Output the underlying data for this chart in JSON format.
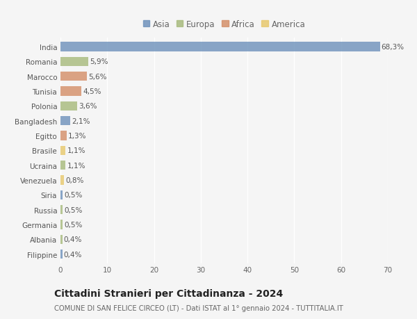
{
  "categories": [
    "India",
    "Romania",
    "Marocco",
    "Tunisia",
    "Polonia",
    "Bangladesh",
    "Egitto",
    "Brasile",
    "Ucraina",
    "Venezuela",
    "Siria",
    "Russia",
    "Germania",
    "Albania",
    "Filippine"
  ],
  "values": [
    68.3,
    5.9,
    5.6,
    4.5,
    3.6,
    2.1,
    1.3,
    1.1,
    1.1,
    0.8,
    0.5,
    0.5,
    0.5,
    0.4,
    0.4
  ],
  "continents": [
    "Asia",
    "Europa",
    "Africa",
    "Africa",
    "Europa",
    "Asia",
    "Africa",
    "America",
    "Europa",
    "America",
    "Asia",
    "Europa",
    "Europa",
    "Europa",
    "Asia"
  ],
  "labels": [
    "68,3%",
    "5,9%",
    "5,6%",
    "4,5%",
    "3,6%",
    "2,1%",
    "1,3%",
    "1,1%",
    "1,1%",
    "0,8%",
    "0,5%",
    "0,5%",
    "0,5%",
    "0,4%",
    "0,4%"
  ],
  "continent_colors": {
    "Asia": "#7093bc",
    "Europa": "#a8bb7e",
    "Africa": "#d4906a",
    "America": "#e8c96e"
  },
  "legend_order": [
    "Asia",
    "Europa",
    "Africa",
    "America"
  ],
  "xlim": [
    0,
    70
  ],
  "xticks": [
    0,
    10,
    20,
    30,
    40,
    50,
    60,
    70
  ],
  "title": "Cittadini Stranieri per Cittadinanza - 2024",
  "subtitle": "COMUNE DI SAN FELICE CIRCEO (LT) - Dati ISTAT al 1° gennaio 2024 - TUTTITALIA.IT",
  "bg_color": "#f5f5f5",
  "grid_color": "#ffffff",
  "bar_height": 0.62,
  "label_fontsize": 7.5,
  "tick_fontsize": 7.5,
  "title_fontsize": 10,
  "subtitle_fontsize": 7.2,
  "legend_fontsize": 8.5
}
